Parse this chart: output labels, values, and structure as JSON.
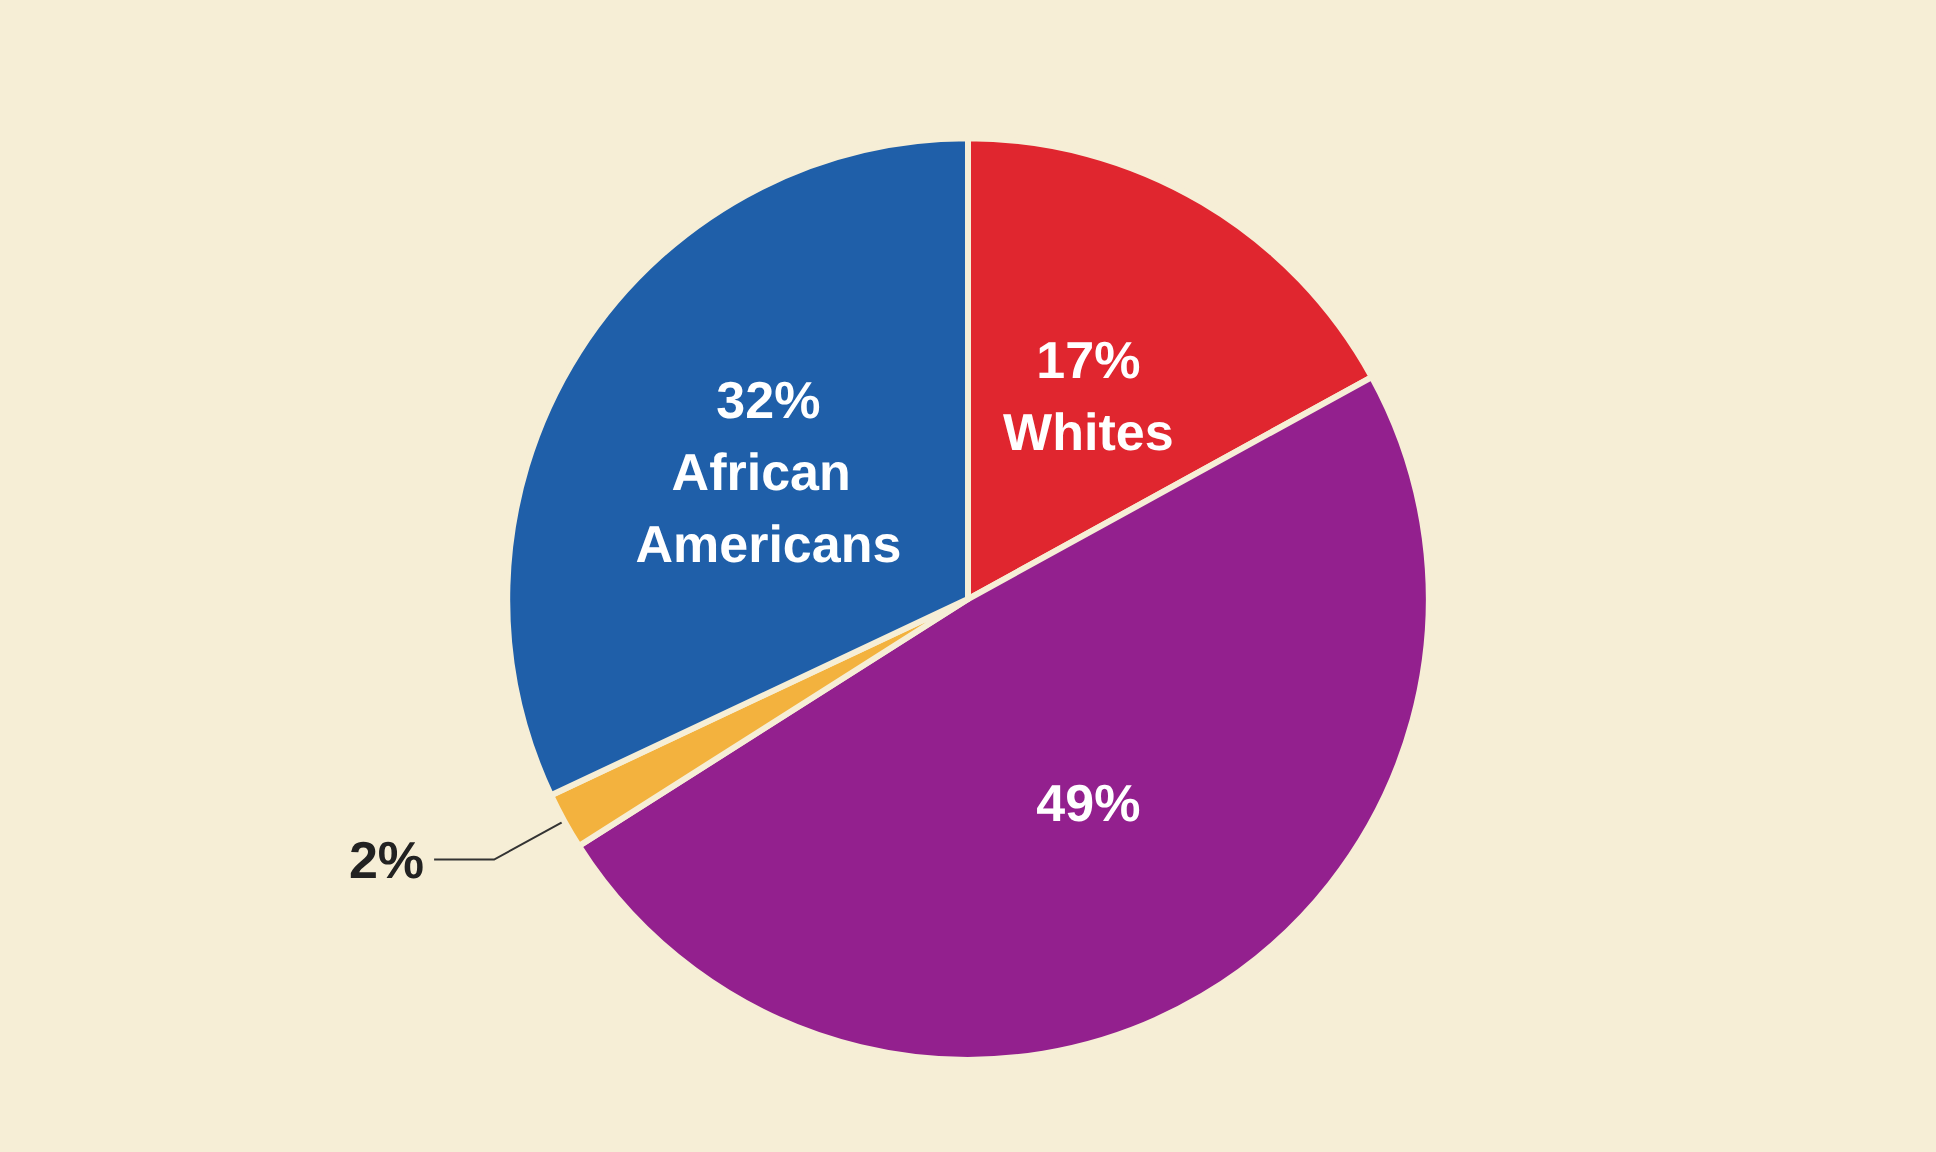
{
  "chart_data": {
    "type": "pie",
    "categories": [
      "Whites",
      null,
      null,
      "African Americans"
    ],
    "values": [
      17,
      49,
      2,
      32
    ],
    "value_labels": [
      "17%",
      "49%",
      "2%",
      "32%"
    ],
    "colors": [
      "#e0262f",
      "#93208e",
      "#f3b23e",
      "#1f5fa9"
    ]
  }
}
